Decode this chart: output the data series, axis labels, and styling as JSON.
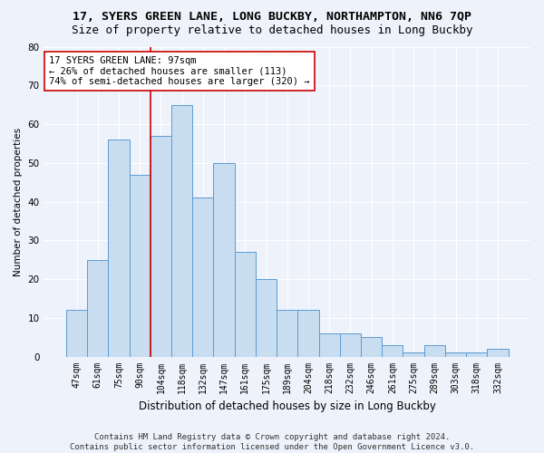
{
  "title1": "17, SYERS GREEN LANE, LONG BUCKBY, NORTHAMPTON, NN6 7QP",
  "title2": "Size of property relative to detached houses in Long Buckby",
  "xlabel": "Distribution of detached houses by size in Long Buckby",
  "ylabel": "Number of detached properties",
  "categories": [
    "47sqm",
    "61sqm",
    "75sqm",
    "90sqm",
    "104sqm",
    "118sqm",
    "132sqm",
    "147sqm",
    "161sqm",
    "175sqm",
    "189sqm",
    "204sqm",
    "218sqm",
    "232sqm",
    "246sqm",
    "261sqm",
    "275sqm",
    "289sqm",
    "303sqm",
    "318sqm",
    "332sqm"
  ],
  "values": [
    12,
    25,
    56,
    47,
    57,
    65,
    41,
    50,
    27,
    20,
    12,
    12,
    6,
    6,
    5,
    3,
    1,
    3,
    1,
    1,
    2
  ],
  "bar_color": "#c9ddf0",
  "bar_edge_color": "#5b9bd5",
  "vline_x": 3.5,
  "vline_color": "#cc0000",
  "annotation_line1": "17 SYERS GREEN LANE: 97sqm",
  "annotation_line2": "← 26% of detached houses are smaller (113)",
  "annotation_line3": "74% of semi-detached houses are larger (320) →",
  "annotation_box_color": "white",
  "annotation_box_edge_color": "#cc0000",
  "ylim": [
    0,
    80
  ],
  "yticks": [
    0,
    10,
    20,
    30,
    40,
    50,
    60,
    70,
    80
  ],
  "footer_line1": "Contains HM Land Registry data © Crown copyright and database right 2024.",
  "footer_line2": "Contains public sector information licensed under the Open Government Licence v3.0.",
  "bg_color": "#eef2fa",
  "plot_bg_color": "#eef2fa",
  "grid_color": "#ffffff",
  "title1_fontsize": 9.5,
  "title2_fontsize": 9,
  "annotation_fontsize": 7.5,
  "footer_fontsize": 6.5,
  "ylabel_fontsize": 7.5,
  "xlabel_fontsize": 8.5,
  "tick_fontsize": 7,
  "ytick_fontsize": 7.5
}
